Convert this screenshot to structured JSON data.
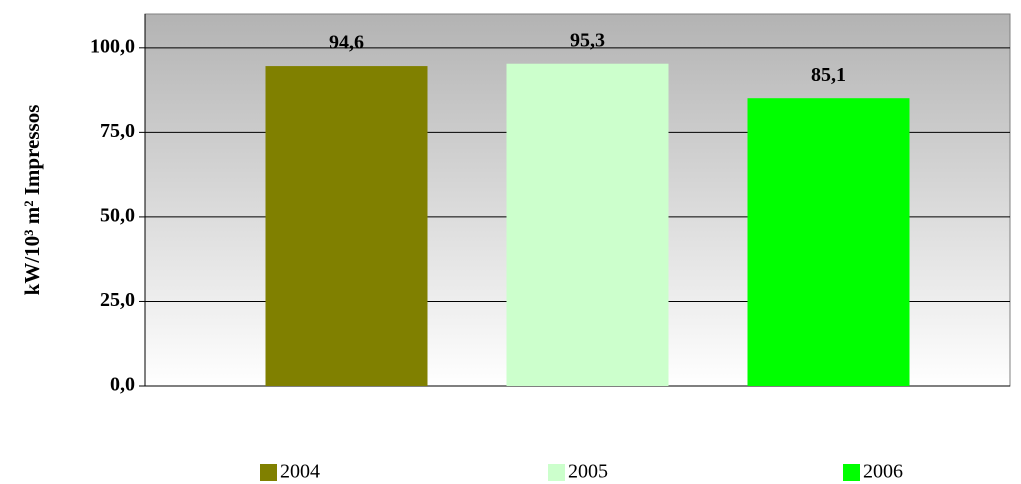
{
  "chart_data": {
    "type": "bar",
    "y_label": "kW/10³ m² Impressos",
    "categories": [
      null
    ],
    "series": [
      {
        "name": "2004",
        "color": "#808000",
        "values": [
          94.6
        ],
        "value_labels": [
          "94,6"
        ]
      },
      {
        "name": "2005",
        "color": "#ccffcc",
        "values": [
          95.3
        ],
        "value_labels": [
          "95,3"
        ]
      },
      {
        "name": "2006",
        "color": "#00ff00",
        "values": [
          85.1
        ],
        "value_labels": [
          "85,1"
        ]
      }
    ],
    "ylim": [
      0,
      110
    ],
    "yticks": [
      {
        "value": 0,
        "label": "0,0"
      },
      {
        "value": 25,
        "label": "25,0"
      },
      {
        "value": 50,
        "label": "50,0"
      },
      {
        "value": 75,
        "label": "75,0"
      },
      {
        "value": 100,
        "label": "100,0"
      }
    ],
    "grid": true,
    "legend": "bottom"
  }
}
